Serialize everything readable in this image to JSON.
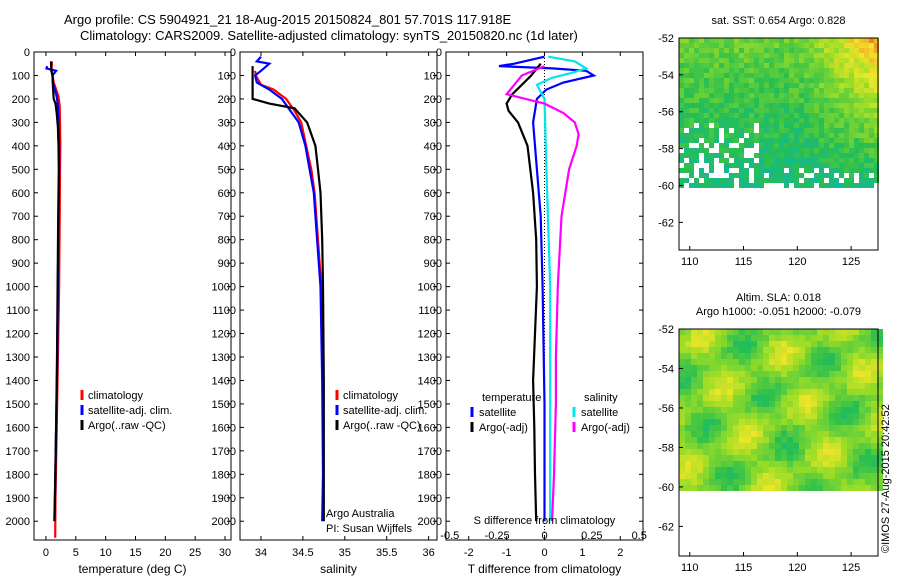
{
  "title": {
    "line1": "Argo profile: CS 5904921_21 18-Aug-2015 20150824_801 57.701S 117.918E",
    "line2": "Climatology: CARS2009. Satellite-adjusted climatology: synTS_20150820.nc (1d later)"
  },
  "colors": {
    "climatology": "#ff0000",
    "satellite_adj": "#0000ff",
    "argo": "#000000",
    "salinity_sat": "#00e5ee",
    "salinity_argo": "#ff00ff"
  },
  "depth_axis": {
    "ylim": [
      0,
      2080
    ],
    "ticks": [
      0,
      100,
      200,
      300,
      400,
      500,
      600,
      700,
      800,
      900,
      1000,
      1100,
      1200,
      1300,
      1400,
      1500,
      1600,
      1700,
      1800,
      1900,
      2000
    ]
  },
  "chart_data": [
    {
      "type": "line",
      "id": "temperature",
      "xlabel": "temperature (deg C)",
      "xlim": [
        -2,
        31
      ],
      "xticks": [
        0,
        5,
        10,
        15,
        20,
        25,
        30
      ],
      "legend": [
        "climatology",
        "satellite-adj. clim.",
        "Argo(..raw -QC)"
      ],
      "series": [
        {
          "name": "climatology",
          "color": "#ff0000",
          "points": [
            [
              1.0,
              40
            ],
            [
              0.95,
              80
            ],
            [
              1.1,
              100
            ],
            [
              1.3,
              130
            ],
            [
              1.7,
              160
            ],
            [
              2.1,
              190
            ],
            [
              2.3,
              230
            ],
            [
              2.35,
              300
            ],
            [
              2.4,
              400
            ],
            [
              2.35,
              500
            ],
            [
              2.3,
              700
            ],
            [
              2.2,
              1000
            ],
            [
              2.0,
              1300
            ],
            [
              1.8,
              1600
            ],
            [
              1.6,
              1900
            ],
            [
              1.55,
              2070
            ]
          ]
        },
        {
          "name": "satellite-adj. clim.",
          "color": "#0000ff",
          "points": [
            [
              0.2,
              60
            ],
            [
              0.1,
              70
            ],
            [
              1.7,
              80
            ],
            [
              1.1,
              100
            ],
            [
              1.15,
              130
            ],
            [
              1.5,
              160
            ],
            [
              1.8,
              190
            ],
            [
              2.0,
              230
            ],
            [
              2.1,
              300
            ],
            [
              2.2,
              400
            ],
            [
              2.2,
              500
            ],
            [
              2.1,
              700
            ],
            [
              2.0,
              1000
            ],
            [
              1.9,
              1300
            ],
            [
              1.7,
              1600
            ],
            [
              1.5,
              1900
            ],
            [
              1.45,
              2000
            ]
          ]
        },
        {
          "name": "Argo(..raw -QC)",
          "color": "#000000",
          "points": [
            [
              0.85,
              40
            ],
            [
              0.9,
              80
            ],
            [
              1.1,
              100
            ],
            [
              1.2,
              160
            ],
            [
              1.3,
              200
            ],
            [
              1.6,
              220
            ],
            [
              1.8,
              260
            ],
            [
              2.0,
              320
            ],
            [
              2.1,
              400
            ],
            [
              2.15,
              500
            ],
            [
              2.05,
              700
            ],
            [
              1.95,
              1000
            ],
            [
              1.85,
              1300
            ],
            [
              1.7,
              1600
            ],
            [
              1.5,
              1900
            ],
            [
              1.4,
              2000
            ]
          ]
        }
      ]
    },
    {
      "type": "line",
      "id": "salinity",
      "xlabel": "salinity",
      "xlim": [
        33.75,
        36.1
      ],
      "xticks": [
        34,
        34.5,
        35,
        35.5,
        36
      ],
      "tick_labels": [
        "34",
        "34.5",
        "35",
        "35.5",
        "36"
      ],
      "legend": [
        "climatology",
        "satellite-adj. clim.",
        "Argo(..raw -QC)"
      ],
      "annotation": [
        "Argo Australia",
        "PI: Susan Wijffels"
      ],
      "series": [
        {
          "name": "climatology",
          "color": "#ff0000",
          "points": [
            [
              33.93,
              80
            ],
            [
              33.94,
              100
            ],
            [
              34.0,
              140
            ],
            [
              34.15,
              160
            ],
            [
              34.3,
              200
            ],
            [
              34.4,
              250
            ],
            [
              34.48,
              300
            ],
            [
              34.54,
              400
            ],
            [
              34.6,
              500
            ],
            [
              34.64,
              600
            ],
            [
              34.68,
              800
            ],
            [
              34.72,
              1000
            ],
            [
              34.73,
              1200
            ]
          ]
        },
        {
          "name": "satellite-adj. clim.",
          "color": "#0000ff",
          "points": [
            [
              34.0,
              20
            ],
            [
              33.95,
              40
            ],
            [
              34.1,
              50
            ],
            [
              34.0,
              80
            ],
            [
              33.93,
              100
            ],
            [
              33.95,
              130
            ],
            [
              34.1,
              160
            ],
            [
              34.25,
              200
            ],
            [
              34.35,
              250
            ],
            [
              34.45,
              300
            ],
            [
              34.53,
              400
            ],
            [
              34.58,
              500
            ],
            [
              34.63,
              600
            ],
            [
              34.67,
              800
            ],
            [
              34.71,
              1000
            ],
            [
              34.73,
              1400
            ],
            [
              34.74,
              1800
            ],
            [
              34.73,
              2000
            ]
          ]
        },
        {
          "name": "Argo(..raw -QC)",
          "color": "#000000",
          "points": [
            [
              33.9,
              60
            ],
            [
              33.9,
              200
            ],
            [
              34.1,
              220
            ],
            [
              34.4,
              240
            ],
            [
              34.55,
              300
            ],
            [
              34.65,
              400
            ],
            [
              34.68,
              500
            ],
            [
              34.71,
              600
            ],
            [
              34.73,
              800
            ],
            [
              34.74,
              1000
            ],
            [
              34.75,
              1400
            ],
            [
              34.75,
              1800
            ],
            [
              34.75,
              2000
            ]
          ]
        }
      ]
    },
    {
      "type": "line",
      "id": "differences",
      "xlabel": "T difference from climatology",
      "xlim": [
        -2.6,
        2.6
      ],
      "xticks": [
        -2,
        -1,
        0,
        1,
        2
      ],
      "secondary_xlabel": "S difference from climatology",
      "secondary_ticks": [
        -0.5,
        -0.25,
        0,
        0.25,
        0.5
      ],
      "secondary_tick_labels": [
        "-0.5",
        "-0.25",
        "0",
        "0.25",
        "0.5"
      ],
      "secondary_scale": 0.2,
      "legend_headers": [
        "temperature",
        "salinity"
      ],
      "legend": [
        "satellite",
        "Argo(-adj)",
        "satellite",
        "Argo(-adj)"
      ],
      "series": [
        {
          "name": "temperature satellite",
          "color": "#0000ff",
          "points": [
            [
              0.0,
              20
            ],
            [
              -0.8,
              50
            ],
            [
              -1.2,
              60
            ],
            [
              0.2,
              70
            ],
            [
              1.1,
              80
            ],
            [
              1.3,
              100
            ],
            [
              0.5,
              130
            ],
            [
              0.05,
              160
            ],
            [
              -0.2,
              200
            ],
            [
              -0.3,
              300
            ],
            [
              -0.2,
              500
            ],
            [
              -0.1,
              700
            ],
            [
              -0.05,
              1000
            ],
            [
              0.0,
              1500
            ],
            [
              0.0,
              2000
            ]
          ]
        },
        {
          "name": "temperature Argo(-adj)",
          "color": "#000000",
          "points": [
            [
              -0.1,
              50
            ],
            [
              -0.35,
              100
            ],
            [
              -0.85,
              180
            ],
            [
              -1.0,
              220
            ],
            [
              -0.95,
              250
            ],
            [
              -0.7,
              300
            ],
            [
              -0.45,
              400
            ],
            [
              -0.3,
              600
            ],
            [
              -0.22,
              800
            ],
            [
              -0.2,
              1000
            ],
            [
              -0.25,
              1200
            ],
            [
              -0.3,
              1400
            ],
            [
              -0.27,
              1600
            ],
            [
              -0.25,
              1800
            ],
            [
              -0.22,
              2000
            ]
          ]
        },
        {
          "name": "salinity satellite",
          "color": "#00e5ee",
          "points": [
            [
              0.1,
              20
            ],
            [
              0.8,
              40
            ],
            [
              1.1,
              70
            ],
            [
              0.7,
              90
            ],
            [
              0.2,
              110
            ],
            [
              -0.2,
              140
            ],
            [
              0.0,
              200
            ],
            [
              0.05,
              500
            ],
            [
              0.15,
              1000
            ],
            [
              0.15,
              1500
            ],
            [
              0.15,
              2000
            ]
          ]
        },
        {
          "name": "salinity Argo(-adj)",
          "color": "#ff00ff",
          "points": [
            [
              0.0,
              60
            ],
            [
              -0.6,
              100
            ],
            [
              -1.0,
              180
            ],
            [
              -0.5,
              200
            ],
            [
              0.0,
              220
            ],
            [
              0.5,
              260
            ],
            [
              0.8,
              300
            ],
            [
              0.9,
              350
            ],
            [
              0.85,
              400
            ],
            [
              0.65,
              500
            ],
            [
              0.45,
              700
            ],
            [
              0.35,
              1000
            ],
            [
              0.3,
              1300
            ],
            [
              0.3,
              1500
            ],
            [
              0.25,
              1800
            ],
            [
              0.2,
              2000
            ]
          ]
        }
      ]
    },
    {
      "type": "heatmap",
      "id": "sst_map",
      "title": "sat. SST: 0.654 Argo: 0.828",
      "xlim": [
        109,
        127.5
      ],
      "ylim": [
        -63.5,
        -52
      ],
      "xticks": [
        110,
        115,
        120,
        125
      ],
      "yticks": [
        -52,
        -54,
        -56,
        -58,
        -60,
        -62
      ],
      "data_bottom": -60,
      "argo_marker": [
        117.918,
        -57.701
      ]
    },
    {
      "type": "heatmap",
      "id": "sla_map",
      "title_line1": "Altim. SLA: 0.018",
      "title_line2": "Argo h1000: -0.051 h2000: -0.079",
      "xlim": [
        109,
        127.5
      ],
      "ylim": [
        -63.5,
        -52
      ],
      "xticks": [
        110,
        115,
        120,
        125
      ],
      "yticks": [
        -52,
        -54,
        -56,
        -58,
        -60,
        -62
      ],
      "data_bottom": -60
    }
  ],
  "stamp": "©IMOS 27-Aug-2015 20:42:52"
}
